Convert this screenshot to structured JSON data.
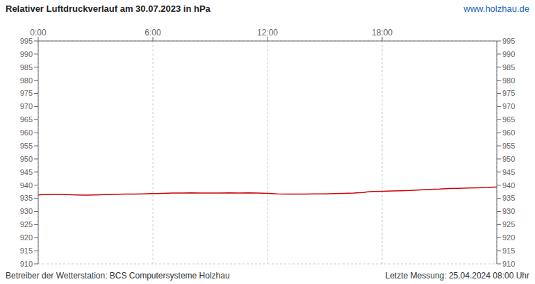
{
  "chart_data": {
    "type": "line",
    "title": "Relativer Luftdruckverlauf am 30.07.2023 in hPa",
    "annotations": [
      "www.holzhau.de",
      "Betreiber der Wetterstation: BCS Computersysteme Holzhau",
      "Letzte Messung: 25.04.2024 08:00 Uhr"
    ],
    "x": [
      0.0,
      0.25,
      0.5,
      0.75,
      1.0,
      1.5,
      2.0,
      2.5,
      3.0,
      3.5,
      4.0,
      4.5,
      5.0,
      5.5,
      6.0,
      6.5,
      7.0,
      7.5,
      8.0,
      8.5,
      9.0,
      9.5,
      10.0,
      10.5,
      11.0,
      11.5,
      12.0,
      12.25,
      12.5,
      13.0,
      13.5,
      14.0,
      14.5,
      15.0,
      15.5,
      16.0,
      16.5,
      17.0,
      17.25,
      17.5,
      18.0,
      18.5,
      19.0,
      19.5,
      20.0,
      20.5,
      21.0,
      21.5,
      22.0,
      22.5,
      23.0,
      23.5,
      24.0
    ],
    "values": [
      936.3,
      936.4,
      936.4,
      936.5,
      936.5,
      936.4,
      936.3,
      936.2,
      936.3,
      936.4,
      936.5,
      936.6,
      936.6,
      936.7,
      936.8,
      936.9,
      937.0,
      937.0,
      937.1,
      937.0,
      937.0,
      937.0,
      937.1,
      937.0,
      937.1,
      937.0,
      936.9,
      936.8,
      936.7,
      936.6,
      936.6,
      936.6,
      936.7,
      936.7,
      936.8,
      936.9,
      937.0,
      937.2,
      937.5,
      937.6,
      937.7,
      937.8,
      937.9,
      938.0,
      938.2,
      938.4,
      938.5,
      938.7,
      938.8,
      938.9,
      939.0,
      939.1,
      939.3
    ],
    "color": "#cc0000",
    "xlim": [
      0,
      24
    ],
    "xticks": [
      {
        "value": 0,
        "label": "0:00"
      },
      {
        "value": 6,
        "label": "6:00"
      },
      {
        "value": 12,
        "label": "12:00"
      },
      {
        "value": 18,
        "label": "18:00"
      }
    ],
    "ylim": [
      910,
      995
    ],
    "yticks": [
      910,
      915,
      920,
      925,
      930,
      935,
      940,
      945,
      950,
      955,
      960,
      965,
      970,
      975,
      980,
      985,
      990,
      995
    ],
    "y2lim": [
      910,
      995
    ],
    "y2ticks": [
      910,
      915,
      920,
      925,
      930,
      935,
      940,
      945,
      950,
      955,
      960,
      965,
      970,
      975,
      980,
      985,
      990,
      995
    ],
    "grid": true
  }
}
